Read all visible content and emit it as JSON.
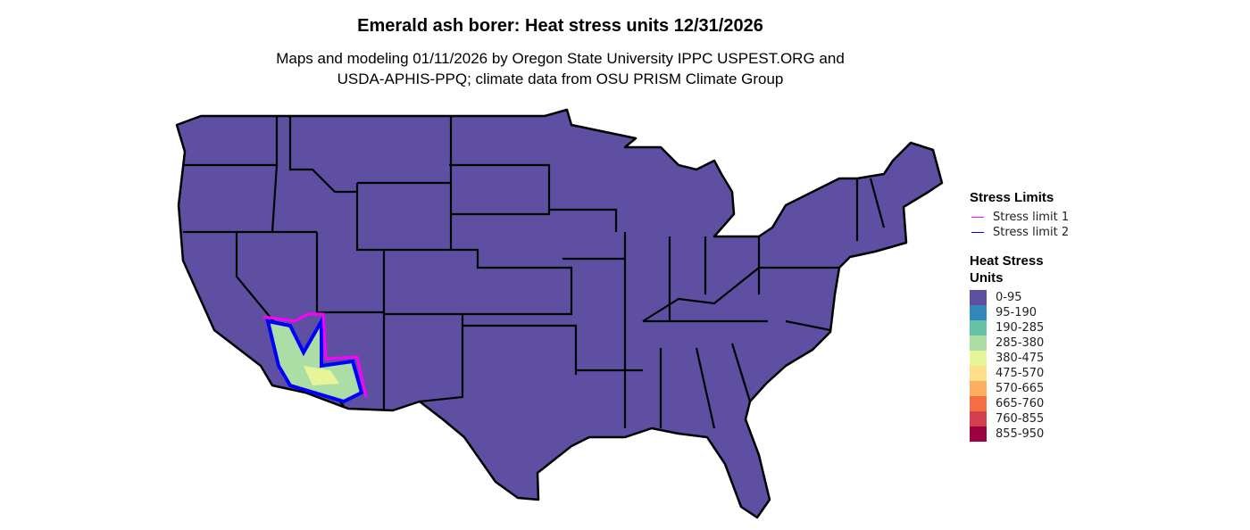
{
  "title": "Emerald ash borer: Heat stress units 12/31/2026",
  "subtitle_line1": "Maps and modeling 01/11/2026 by Oregon State University IPPC USPEST.ORG and",
  "subtitle_line2": "USDA-APHIS-PPQ; climate data from OSU PRISM Climate Group",
  "stress_legend": {
    "title": "Stress Limits",
    "items": [
      {
        "label": "Stress limit 1",
        "color": "#ff00ff"
      },
      {
        "label": "Stress limit 2",
        "color": "#0000ff"
      }
    ]
  },
  "heat_legend": {
    "title_line1": "Heat Stress",
    "title_line2": "Units",
    "items": [
      {
        "label": "0-95",
        "color": "#5e4fa2"
      },
      {
        "label": "95-190",
        "color": "#3288bd"
      },
      {
        "label": "190-285",
        "color": "#66c2a5"
      },
      {
        "label": "285-380",
        "color": "#abdda4"
      },
      {
        "label": "380-475",
        "color": "#e6f598"
      },
      {
        "label": "475-570",
        "color": "#fee08b"
      },
      {
        "label": "570-665",
        "color": "#fdae61"
      },
      {
        "label": "665-760",
        "color": "#f46d43"
      },
      {
        "label": "760-855",
        "color": "#d53e4f"
      },
      {
        "label": "855-950",
        "color": "#9e0142"
      }
    ]
  }
}
